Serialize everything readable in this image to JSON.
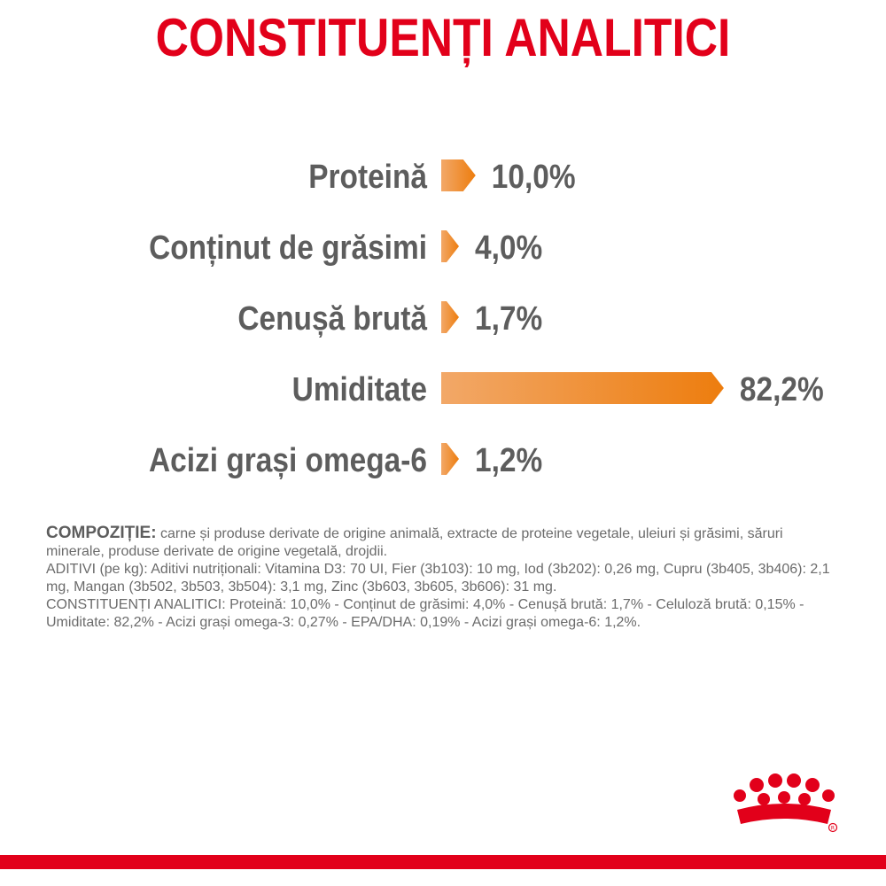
{
  "title": "CONSTITUENȚI ANALITICI",
  "colors": {
    "title": "#e2001a",
    "label": "#5d5d5d",
    "bar_start": "#f2a868",
    "bar_end": "#ed7d0e",
    "brand": "#e2001a"
  },
  "chart_data": {
    "type": "bar",
    "orientation": "horizontal",
    "categories": [
      "Proteină",
      "Conținut de grăsimi",
      "Cenușă brută",
      "Umiditate",
      "Acizi grași omega-6"
    ],
    "values": [
      10.0,
      4.0,
      1.7,
      82.2,
      1.2
    ],
    "value_labels": [
      "10,0%",
      "4,0%",
      "1,7%",
      "82,2%",
      "1,2%"
    ],
    "unit": "%",
    "xlim": [
      0,
      100
    ],
    "grid": false,
    "legend": "none"
  },
  "composition": {
    "heading": "COMPOZIȚIE:",
    "ingredients": "carne și produse derivate de origine animală, extracte de proteine vegetale, uleiuri și grăsimi, săruri minerale, produse derivate de origine vegetală, drojdii.",
    "additives": "ADITIVI (pe kg): Aditivi nutriționali: Vitamina D3: 70 UI, Fier (3b103): 10 mg, Iod (3b202): 0,26 mg, Cupru (3b405, 3b406): 2,1 mg, Mangan (3b502, 3b503, 3b504): 3,1 mg, Zinc (3b603, 3b605, 3b606): 31 mg.",
    "analytical": "CONSTITUENȚI ANALITICI: Proteină: 10,0% - Conținut de grăsimi: 4,0% - Cenușă brută: 1,7% - Celuloză brută: 0,15% - Umiditate: 82,2% - Acizi grași omega-3: 0,27% - EPA/DHA: 0,19% - Acizi grași omega-6: 1,2%."
  },
  "logo": {
    "icon": "royal-canin-crown-icon"
  }
}
